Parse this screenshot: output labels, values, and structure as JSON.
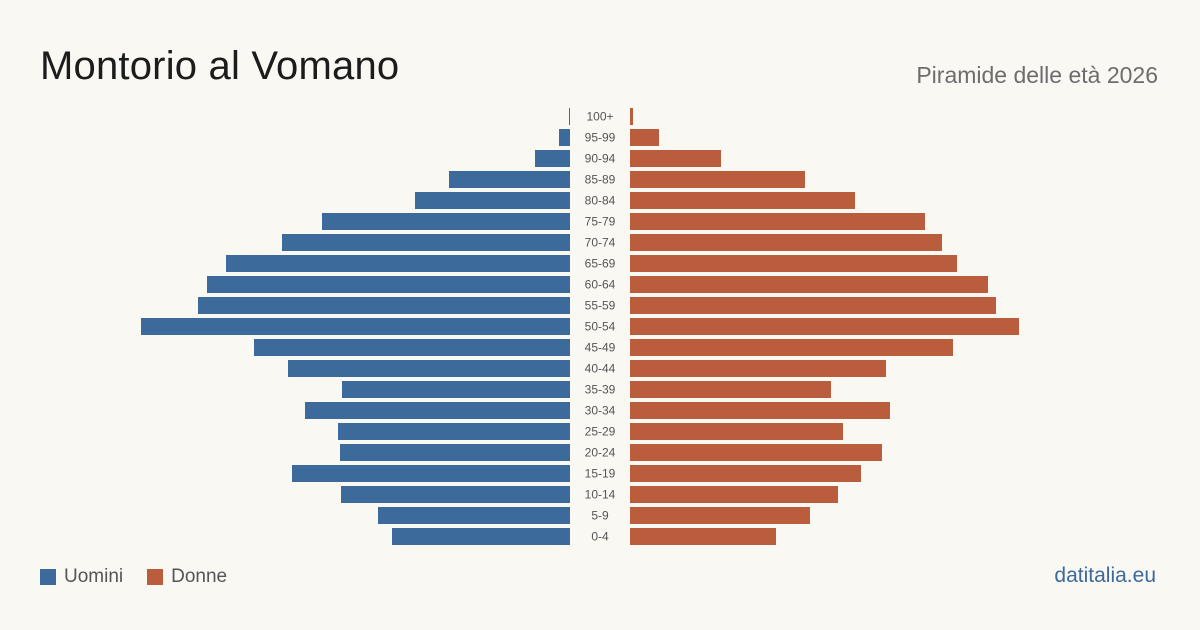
{
  "header": {
    "title": "Montorio al Vomano",
    "subtitle": "Piramide delle età 2026"
  },
  "legend": {
    "men_label": "Uomini",
    "women_label": "Donne"
  },
  "source": "datitalia.eu",
  "colors": {
    "men": "#3c6a9b",
    "women": "#b95d3d",
    "background": "#faf8f3"
  },
  "chart_data": {
    "type": "bar",
    "orientation": "horizontal-pyramid",
    "categories": [
      "100+",
      "95-99",
      "90-94",
      "85-89",
      "80-84",
      "75-79",
      "70-74",
      "65-69",
      "60-64",
      "55-59",
      "50-54",
      "45-49",
      "40-44",
      "35-39",
      "30-34",
      "25-29",
      "20-24",
      "15-19",
      "10-14",
      "5-9",
      "0-4"
    ],
    "series": [
      {
        "name": "Uomini",
        "values": [
          1,
          11,
          35,
          121,
          155,
          248,
          288,
          344,
          363,
          372,
          429,
          316,
          282,
          228,
          265,
          232,
          230,
          278,
          229,
          192,
          178
        ]
      },
      {
        "name": "Donne",
        "values": [
          3,
          29,
          91,
          175,
          225,
          295,
          312,
          327,
          358,
          366,
          389,
          323,
          256,
          201,
          260,
          213,
          252,
          231,
          208,
          180,
          146
        ]
      }
    ],
    "legend_position": "bottom-left",
    "grid": false
  }
}
